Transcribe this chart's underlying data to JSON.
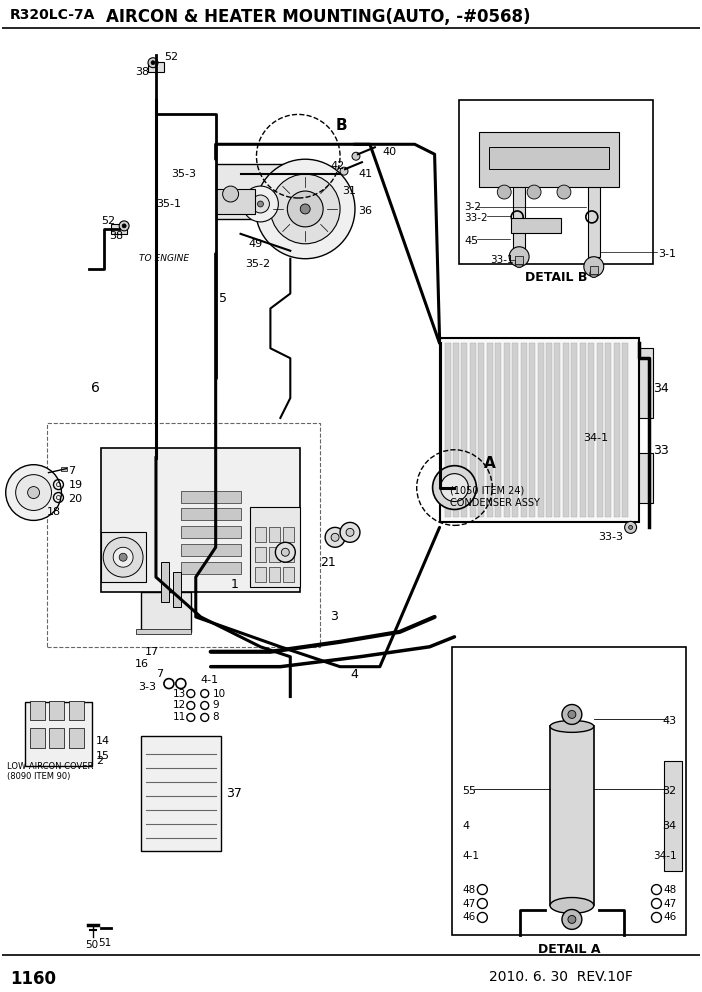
{
  "title": "AIRCON & HEATER MOUNTING(AUTO, -#0568)",
  "model": "R320LC-7A",
  "page": "1160",
  "date": "2010. 6. 30  REV.10F",
  "bg_color": "#ffffff",
  "lc": "#000000",
  "gc": "#666666",
  "lgc": "#aaaaaa"
}
